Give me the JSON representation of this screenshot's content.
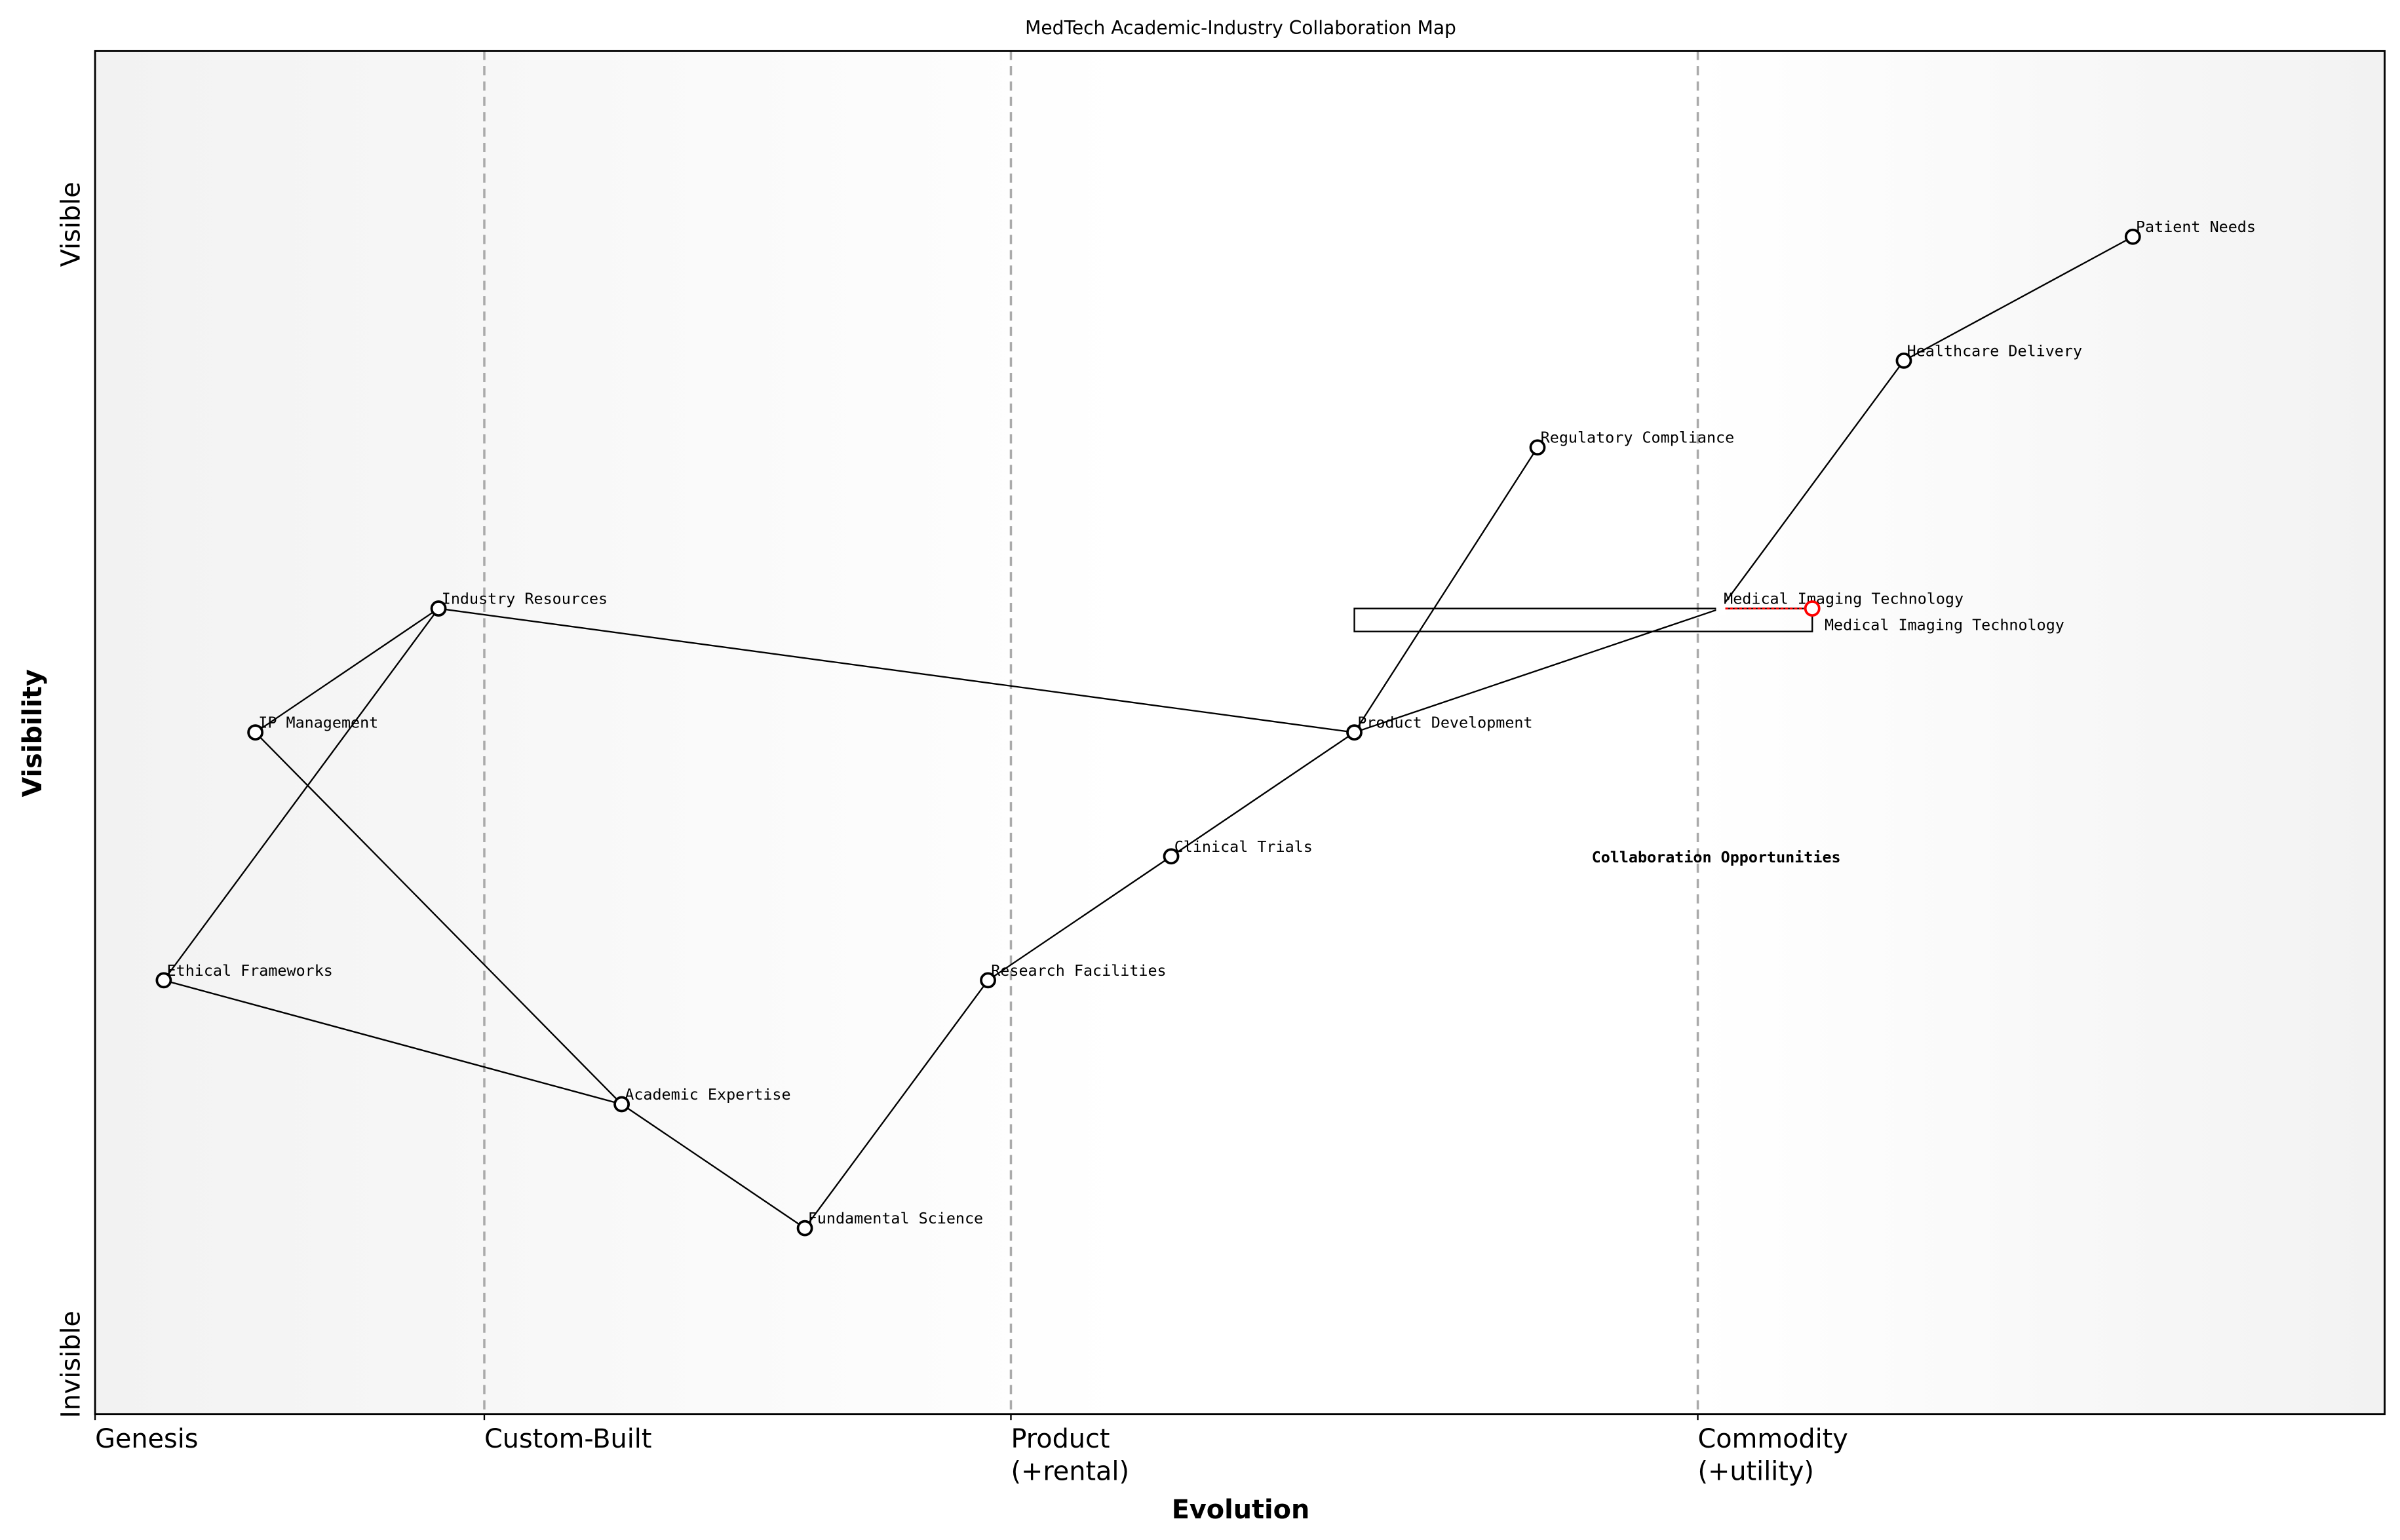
{
  "chart_data": {
    "type": "scatter",
    "title": "MedTech Academic-Industry Collaboration Map",
    "xlabel": "Evolution",
    "ylabel": "Visibility",
    "xlim": [
      0,
      1
    ],
    "ylim": [
      0,
      1.1
    ],
    "grid": false,
    "x_ticks": [
      {
        "value": 0,
        "label": "Genesis"
      },
      {
        "value": 0.17,
        "label": "Custom-Built"
      },
      {
        "value": 0.4,
        "label": "Product\n(+rental)"
      },
      {
        "value": 0.7,
        "label": "Commodity\n(+utility)"
      }
    ],
    "y_ticks": [
      {
        "value": 0.04,
        "label": "Invisible"
      },
      {
        "value": 0.96,
        "label": "Visible"
      }
    ],
    "stage_dividers": [
      0.17,
      0.4,
      0.7
    ],
    "components": [
      {
        "name": "Patient Needs",
        "x": 0.89,
        "y": 0.95
      },
      {
        "name": "Healthcare Delivery",
        "x": 0.79,
        "y": 0.85
      },
      {
        "name": "Regulatory Compliance",
        "x": 0.63,
        "y": 0.78
      },
      {
        "name": "Medical Imaging Technology",
        "x": 0.71,
        "y": 0.65,
        "marker": "none"
      },
      {
        "name": "Industry Resources",
        "x": 0.15,
        "y": 0.65
      },
      {
        "name": "IP Management",
        "x": 0.07,
        "y": 0.55
      },
      {
        "name": "Product Development",
        "x": 0.55,
        "y": 0.55
      },
      {
        "name": "Clinical Trials",
        "x": 0.47,
        "y": 0.45
      },
      {
        "name": "Research Facilities",
        "x": 0.39,
        "y": 0.35
      },
      {
        "name": "Ethical Frameworks",
        "x": 0.03,
        "y": 0.35
      },
      {
        "name": "Academic Expertise",
        "x": 0.23,
        "y": 0.25
      },
      {
        "name": "Fundamental Science",
        "x": 0.31,
        "y": 0.15
      }
    ],
    "evolved": {
      "name": "Medical Imaging Technology",
      "from_x": 0.71,
      "x": 0.75,
      "y": 0.65,
      "color": "#ff0000"
    },
    "pipeline": {
      "x_start": 0.55,
      "x_end": 0.75,
      "y": 0.65
    },
    "links": [
      [
        "Patient Needs",
        "Healthcare Delivery"
      ],
      [
        "Healthcare Delivery",
        "Medical Imaging Technology"
      ],
      [
        "Medical Imaging Technology",
        "Product Development"
      ],
      [
        "Product Development",
        "Regulatory Compliance"
      ],
      [
        "Product Development",
        "Industry Resources"
      ],
      [
        "Product Development",
        "Clinical Trials"
      ],
      [
        "Clinical Trials",
        "Research Facilities"
      ],
      [
        "Research Facilities",
        "Fundamental Science"
      ],
      [
        "Fundamental Science",
        "Academic Expertise"
      ],
      [
        "Academic Expertise",
        "IP Management"
      ],
      [
        "IP Management",
        "Industry Resources"
      ],
      [
        "Industry Resources",
        "Ethical Frameworks"
      ],
      [
        "Ethical Frameworks",
        "Academic Expertise"
      ]
    ],
    "annotations": [
      {
        "text": "Collaboration Opportunities",
        "x": 0.7,
        "y": 0.45
      }
    ]
  }
}
